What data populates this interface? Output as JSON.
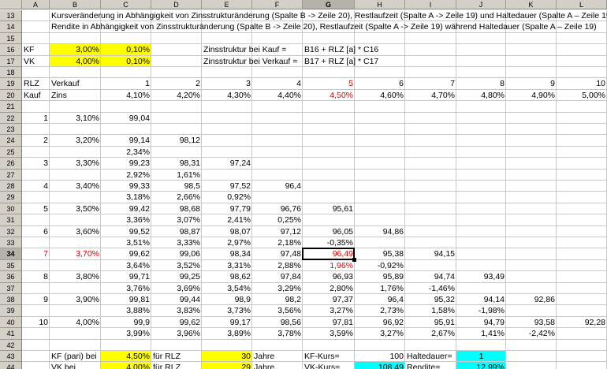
{
  "columns": [
    "A",
    "B",
    "C",
    "D",
    "E",
    "F",
    "G",
    "H",
    "I",
    "J",
    "K",
    "L"
  ],
  "rows": [
    "13",
    "14",
    "15",
    "16",
    "17",
    "18",
    "19",
    "20",
    "21",
    "22",
    "23",
    "24",
    "25",
    "26",
    "27",
    "28",
    "29",
    "30",
    "31",
    "32",
    "33",
    "34",
    "35",
    "36",
    "37",
    "38",
    "39",
    "40",
    "41",
    "42",
    "43",
    "44"
  ],
  "selected": {
    "col": "G",
    "row": "34"
  },
  "cells": [
    {
      "col": "B",
      "row": "13",
      "text": "Kursveränderung in Abhängigkeit von Zinsstrukturänderung (Spalte B -> Zeile 20), Restlaufzeit (Spalte A -> Zeile 19)  und Haltedauer (Spalte A – Zeile 19)",
      "align": "l"
    },
    {
      "col": "B",
      "row": "14",
      "text": "Rendite in Abhängigkeit von Zinsstrukturänderung (Spalte B -> Zeile 20), Restlaufzeit (Spalte A -> Zeile 19)  während Haltedauer (Spalte A – Zeile 19)",
      "align": "l"
    },
    {
      "col": "A",
      "row": "16",
      "text": "KF",
      "align": "l"
    },
    {
      "col": "B",
      "row": "16",
      "text": "3,00%",
      "align": "r",
      "fill": "y"
    },
    {
      "col": "C",
      "row": "16",
      "text": "0,10%",
      "align": "r",
      "fill": "y"
    },
    {
      "col": "E",
      "row": "16",
      "text": "Zinsstruktur bei Kauf =",
      "align": "l"
    },
    {
      "col": "G",
      "row": "16",
      "text": "B16 + RLZ [a] * C16",
      "align": "l"
    },
    {
      "col": "A",
      "row": "17",
      "text": "VK",
      "align": "l"
    },
    {
      "col": "B",
      "row": "17",
      "text": "4,00%",
      "align": "r",
      "fill": "y"
    },
    {
      "col": "C",
      "row": "17",
      "text": "0,10%",
      "align": "r",
      "fill": "y"
    },
    {
      "col": "E",
      "row": "17",
      "text": "Zinsstruktur bei Verkauf =",
      "align": "l"
    },
    {
      "col": "G",
      "row": "17",
      "text": "B17 + RLZ [a] * C17",
      "align": "l"
    },
    {
      "col": "A",
      "row": "19",
      "text": "RLZ",
      "align": "l"
    },
    {
      "col": "B",
      "row": "19",
      "text": "Verkauf",
      "align": "l"
    },
    {
      "col": "C",
      "row": "19",
      "text": "1",
      "align": "r"
    },
    {
      "col": "D",
      "row": "19",
      "text": "2",
      "align": "r"
    },
    {
      "col": "E",
      "row": "19",
      "text": "3",
      "align": "r"
    },
    {
      "col": "F",
      "row": "19",
      "text": "4",
      "align": "r"
    },
    {
      "col": "G",
      "row": "19",
      "text": "5",
      "align": "r",
      "red": true
    },
    {
      "col": "H",
      "row": "19",
      "text": "6",
      "align": "r"
    },
    {
      "col": "I",
      "row": "19",
      "text": "7",
      "align": "r"
    },
    {
      "col": "J",
      "row": "19",
      "text": "8",
      "align": "r"
    },
    {
      "col": "K",
      "row": "19",
      "text": "9",
      "align": "r"
    },
    {
      "col": "L",
      "row": "19",
      "text": "10",
      "align": "r"
    },
    {
      "col": "A",
      "row": "20",
      "text": "Kauf",
      "align": "l"
    },
    {
      "col": "B",
      "row": "20",
      "text": "Zins",
      "align": "l"
    },
    {
      "col": "C",
      "row": "20",
      "text": "4,10%",
      "align": "r"
    },
    {
      "col": "D",
      "row": "20",
      "text": "4,20%",
      "align": "r"
    },
    {
      "col": "E",
      "row": "20",
      "text": "4,30%",
      "align": "r"
    },
    {
      "col": "F",
      "row": "20",
      "text": "4,40%",
      "align": "r"
    },
    {
      "col": "G",
      "row": "20",
      "text": "4,50%",
      "align": "r",
      "red": true
    },
    {
      "col": "H",
      "row": "20",
      "text": "4,60%",
      "align": "r"
    },
    {
      "col": "I",
      "row": "20",
      "text": "4,70%",
      "align": "r"
    },
    {
      "col": "J",
      "row": "20",
      "text": "4,80%",
      "align": "r"
    },
    {
      "col": "K",
      "row": "20",
      "text": "4,90%",
      "align": "r"
    },
    {
      "col": "L",
      "row": "20",
      "text": "5,00%",
      "align": "r"
    },
    {
      "col": "A",
      "row": "22",
      "text": "1",
      "align": "r"
    },
    {
      "col": "B",
      "row": "22",
      "text": "3,10%",
      "align": "r"
    },
    {
      "col": "C",
      "row": "22",
      "text": "99,04",
      "align": "r"
    },
    {
      "col": "A",
      "row": "24",
      "text": "2",
      "align": "r"
    },
    {
      "col": "B",
      "row": "24",
      "text": "3,20%",
      "align": "r"
    },
    {
      "col": "C",
      "row": "24",
      "text": "99,14",
      "align": "r"
    },
    {
      "col": "D",
      "row": "24",
      "text": "98,12",
      "align": "r"
    },
    {
      "col": "C",
      "row": "25",
      "text": "2,34%",
      "align": "r"
    },
    {
      "col": "A",
      "row": "26",
      "text": "3",
      "align": "r"
    },
    {
      "col": "B",
      "row": "26",
      "text": "3,30%",
      "align": "r"
    },
    {
      "col": "C",
      "row": "26",
      "text": "99,23",
      "align": "r"
    },
    {
      "col": "D",
      "row": "26",
      "text": "98,31",
      "align": "r"
    },
    {
      "col": "E",
      "row": "26",
      "text": "97,24",
      "align": "r"
    },
    {
      "col": "C",
      "row": "27",
      "text": "2,92%",
      "align": "r"
    },
    {
      "col": "D",
      "row": "27",
      "text": "1,61%",
      "align": "r"
    },
    {
      "col": "A",
      "row": "28",
      "text": "4",
      "align": "r"
    },
    {
      "col": "B",
      "row": "28",
      "text": "3,40%",
      "align": "r"
    },
    {
      "col": "C",
      "row": "28",
      "text": "99,33",
      "align": "r"
    },
    {
      "col": "D",
      "row": "28",
      "text": "98,5",
      "align": "r"
    },
    {
      "col": "E",
      "row": "28",
      "text": "97,52",
      "align": "r"
    },
    {
      "col": "F",
      "row": "28",
      "text": "96,4",
      "align": "r"
    },
    {
      "col": "C",
      "row": "29",
      "text": "3,18%",
      "align": "r"
    },
    {
      "col": "D",
      "row": "29",
      "text": "2,66%",
      "align": "r"
    },
    {
      "col": "E",
      "row": "29",
      "text": "0,92%",
      "align": "r"
    },
    {
      "col": "A",
      "row": "30",
      "text": "5",
      "align": "r"
    },
    {
      "col": "B",
      "row": "30",
      "text": "3,50%",
      "align": "r"
    },
    {
      "col": "C",
      "row": "30",
      "text": "99,42",
      "align": "r"
    },
    {
      "col": "D",
      "row": "30",
      "text": "98,68",
      "align": "r"
    },
    {
      "col": "E",
      "row": "30",
      "text": "97,79",
      "align": "r"
    },
    {
      "col": "F",
      "row": "30",
      "text": "96,76",
      "align": "r"
    },
    {
      "col": "G",
      "row": "30",
      "text": "95,61",
      "align": "r"
    },
    {
      "col": "C",
      "row": "31",
      "text": "3,36%",
      "align": "r"
    },
    {
      "col": "D",
      "row": "31",
      "text": "3,07%",
      "align": "r"
    },
    {
      "col": "E",
      "row": "31",
      "text": "2,41%",
      "align": "r"
    },
    {
      "col": "F",
      "row": "31",
      "text": "0,25%",
      "align": "r"
    },
    {
      "col": "A",
      "row": "32",
      "text": "6",
      "align": "r"
    },
    {
      "col": "B",
      "row": "32",
      "text": "3,60%",
      "align": "r"
    },
    {
      "col": "C",
      "row": "32",
      "text": "99,52",
      "align": "r"
    },
    {
      "col": "D",
      "row": "32",
      "text": "98,87",
      "align": "r"
    },
    {
      "col": "E",
      "row": "32",
      "text": "98,07",
      "align": "r"
    },
    {
      "col": "F",
      "row": "32",
      "text": "97,12",
      "align": "r"
    },
    {
      "col": "G",
      "row": "32",
      "text": "96,05",
      "align": "r"
    },
    {
      "col": "H",
      "row": "32",
      "text": "94,86",
      "align": "r"
    },
    {
      "col": "C",
      "row": "33",
      "text": "3,51%",
      "align": "r"
    },
    {
      "col": "D",
      "row": "33",
      "text": "3,33%",
      "align": "r"
    },
    {
      "col": "E",
      "row": "33",
      "text": "2,97%",
      "align": "r"
    },
    {
      "col": "F",
      "row": "33",
      "text": "2,18%",
      "align": "r"
    },
    {
      "col": "G",
      "row": "33",
      "text": "-0,35%",
      "align": "r"
    },
    {
      "col": "A",
      "row": "34",
      "text": "7",
      "align": "r",
      "red": true
    },
    {
      "col": "B",
      "row": "34",
      "text": "3,70%",
      "align": "r",
      "red": true
    },
    {
      "col": "C",
      "row": "34",
      "text": "99,62",
      "align": "r"
    },
    {
      "col": "D",
      "row": "34",
      "text": "99,06",
      "align": "r"
    },
    {
      "col": "E",
      "row": "34",
      "text": "98,34",
      "align": "r"
    },
    {
      "col": "F",
      "row": "34",
      "text": "97,48",
      "align": "r"
    },
    {
      "col": "G",
      "row": "34",
      "text": "96,49",
      "align": "r",
      "red": true
    },
    {
      "col": "H",
      "row": "34",
      "text": "95,38",
      "align": "r"
    },
    {
      "col": "I",
      "row": "34",
      "text": "94,15",
      "align": "r"
    },
    {
      "col": "C",
      "row": "35",
      "text": "3,64%",
      "align": "r"
    },
    {
      "col": "D",
      "row": "35",
      "text": "3,52%",
      "align": "r"
    },
    {
      "col": "E",
      "row": "35",
      "text": "3,31%",
      "align": "r"
    },
    {
      "col": "F",
      "row": "35",
      "text": "2,88%",
      "align": "r"
    },
    {
      "col": "G",
      "row": "35",
      "text": "1,96%",
      "align": "r",
      "red": true
    },
    {
      "col": "H",
      "row": "35",
      "text": "-0,92%",
      "align": "r"
    },
    {
      "col": "A",
      "row": "36",
      "text": "8",
      "align": "r"
    },
    {
      "col": "B",
      "row": "36",
      "text": "3,80%",
      "align": "r"
    },
    {
      "col": "C",
      "row": "36",
      "text": "99,71",
      "align": "r"
    },
    {
      "col": "D",
      "row": "36",
      "text": "99,25",
      "align": "r"
    },
    {
      "col": "E",
      "row": "36",
      "text": "98,62",
      "align": "r"
    },
    {
      "col": "F",
      "row": "36",
      "text": "97,84",
      "align": "r"
    },
    {
      "col": "G",
      "row": "36",
      "text": "96,93",
      "align": "r"
    },
    {
      "col": "H",
      "row": "36",
      "text": "95,89",
      "align": "r"
    },
    {
      "col": "I",
      "row": "36",
      "text": "94,74",
      "align": "r"
    },
    {
      "col": "J",
      "row": "36",
      "text": "93,49",
      "align": "r"
    },
    {
      "col": "C",
      "row": "37",
      "text": "3,76%",
      "align": "r"
    },
    {
      "col": "D",
      "row": "37",
      "text": "3,69%",
      "align": "r"
    },
    {
      "col": "E",
      "row": "37",
      "text": "3,54%",
      "align": "r"
    },
    {
      "col": "F",
      "row": "37",
      "text": "3,29%",
      "align": "r"
    },
    {
      "col": "G",
      "row": "37",
      "text": "2,80%",
      "align": "r"
    },
    {
      "col": "H",
      "row": "37",
      "text": "1,76%",
      "align": "r"
    },
    {
      "col": "I",
      "row": "37",
      "text": "-1,46%",
      "align": "r"
    },
    {
      "col": "A",
      "row": "38",
      "text": "9",
      "align": "r"
    },
    {
      "col": "B",
      "row": "38",
      "text": "3,90%",
      "align": "r"
    },
    {
      "col": "C",
      "row": "38",
      "text": "99,81",
      "align": "r"
    },
    {
      "col": "D",
      "row": "38",
      "text": "99,44",
      "align": "r"
    },
    {
      "col": "E",
      "row": "38",
      "text": "98,9",
      "align": "r"
    },
    {
      "col": "F",
      "row": "38",
      "text": "98,2",
      "align": "r"
    },
    {
      "col": "G",
      "row": "38",
      "text": "97,37",
      "align": "r"
    },
    {
      "col": "H",
      "row": "38",
      "text": "96,4",
      "align": "r"
    },
    {
      "col": "I",
      "row": "38",
      "text": "95,32",
      "align": "r"
    },
    {
      "col": "J",
      "row": "38",
      "text": "94,14",
      "align": "r"
    },
    {
      "col": "K",
      "row": "38",
      "text": "92,86",
      "align": "r"
    },
    {
      "col": "C",
      "row": "39",
      "text": "3,88%",
      "align": "r"
    },
    {
      "col": "D",
      "row": "39",
      "text": "3,83%",
      "align": "r"
    },
    {
      "col": "E",
      "row": "39",
      "text": "3,73%",
      "align": "r"
    },
    {
      "col": "F",
      "row": "39",
      "text": "3,56%",
      "align": "r"
    },
    {
      "col": "G",
      "row": "39",
      "text": "3,27%",
      "align": "r"
    },
    {
      "col": "H",
      "row": "39",
      "text": "2,73%",
      "align": "r"
    },
    {
      "col": "I",
      "row": "39",
      "text": "1,58%",
      "align": "r"
    },
    {
      "col": "J",
      "row": "39",
      "text": "-1,98%",
      "align": "r"
    },
    {
      "col": "A",
      "row": "40",
      "text": "10",
      "align": "r"
    },
    {
      "col": "B",
      "row": "40",
      "text": "4,00%",
      "align": "r"
    },
    {
      "col": "C",
      "row": "40",
      "text": "99,9",
      "align": "r"
    },
    {
      "col": "D",
      "row": "40",
      "text": "99,62",
      "align": "r"
    },
    {
      "col": "E",
      "row": "40",
      "text": "99,17",
      "align": "r"
    },
    {
      "col": "F",
      "row": "40",
      "text": "98,56",
      "align": "r"
    },
    {
      "col": "G",
      "row": "40",
      "text": "97,81",
      "align": "r"
    },
    {
      "col": "H",
      "row": "40",
      "text": "96,92",
      "align": "r"
    },
    {
      "col": "I",
      "row": "40",
      "text": "95,91",
      "align": "r"
    },
    {
      "col": "J",
      "row": "40",
      "text": "94,79",
      "align": "r"
    },
    {
      "col": "K",
      "row": "40",
      "text": "93,58",
      "align": "r"
    },
    {
      "col": "L",
      "row": "40",
      "text": "92,28",
      "align": "r"
    },
    {
      "col": "C",
      "row": "41",
      "text": "3,99%",
      "align": "r"
    },
    {
      "col": "D",
      "row": "41",
      "text": "3,96%",
      "align": "r"
    },
    {
      "col": "E",
      "row": "41",
      "text": "3,89%",
      "align": "r"
    },
    {
      "col": "F",
      "row": "41",
      "text": "3,78%",
      "align": "r"
    },
    {
      "col": "G",
      "row": "41",
      "text": "3,59%",
      "align": "r"
    },
    {
      "col": "H",
      "row": "41",
      "text": "3,27%",
      "align": "r"
    },
    {
      "col": "I",
      "row": "41",
      "text": "2,67%",
      "align": "r"
    },
    {
      "col": "J",
      "row": "41",
      "text": "1,41%",
      "align": "r"
    },
    {
      "col": "K",
      "row": "41",
      "text": "-2,42%",
      "align": "r"
    },
    {
      "col": "B",
      "row": "43",
      "text": "KF (pari) bei",
      "align": "l"
    },
    {
      "col": "C",
      "row": "43",
      "text": "4,50%",
      "align": "r",
      "fill": "y"
    },
    {
      "col": "D",
      "row": "43",
      "text": "für RLZ",
      "align": "l"
    },
    {
      "col": "E",
      "row": "43",
      "text": "30",
      "align": "r",
      "fill": "y"
    },
    {
      "col": "F",
      "row": "43",
      "text": "Jahre",
      "align": "l"
    },
    {
      "col": "G",
      "row": "43",
      "text": "KF-Kurs=",
      "align": "l"
    },
    {
      "col": "H",
      "row": "43",
      "text": "100",
      "align": "r"
    },
    {
      "col": "I",
      "row": "43",
      "text": "Haltedauer=",
      "align": "l"
    },
    {
      "col": "J",
      "row": "43",
      "text": "1",
      "align": "c",
      "fill": "cy"
    },
    {
      "col": "B",
      "row": "44",
      "text": "VK bei",
      "align": "l"
    },
    {
      "col": "C",
      "row": "44",
      "text": "4,00%",
      "align": "r",
      "fill": "y"
    },
    {
      "col": "D",
      "row": "44",
      "text": "für RLZ",
      "align": "l"
    },
    {
      "col": "E",
      "row": "44",
      "text": "29",
      "align": "r",
      "fill": "y"
    },
    {
      "col": "F",
      "row": "44",
      "text": "Jahre",
      "align": "l"
    },
    {
      "col": "G",
      "row": "44",
      "text": "VK-Kurs=",
      "align": "l"
    },
    {
      "col": "H",
      "row": "44",
      "text": "108,49",
      "align": "r",
      "fill": "cy"
    },
    {
      "col": "I",
      "row": "44",
      "text": "Rendite=",
      "align": "l"
    },
    {
      "col": "J",
      "row": "44",
      "text": "12,99%",
      "align": "r",
      "fill": "cy"
    }
  ],
  "colors": {
    "yellow": "#ffff00",
    "cyan": "#00ffff",
    "red": "#e00000",
    "header": "#d4d0c8"
  }
}
